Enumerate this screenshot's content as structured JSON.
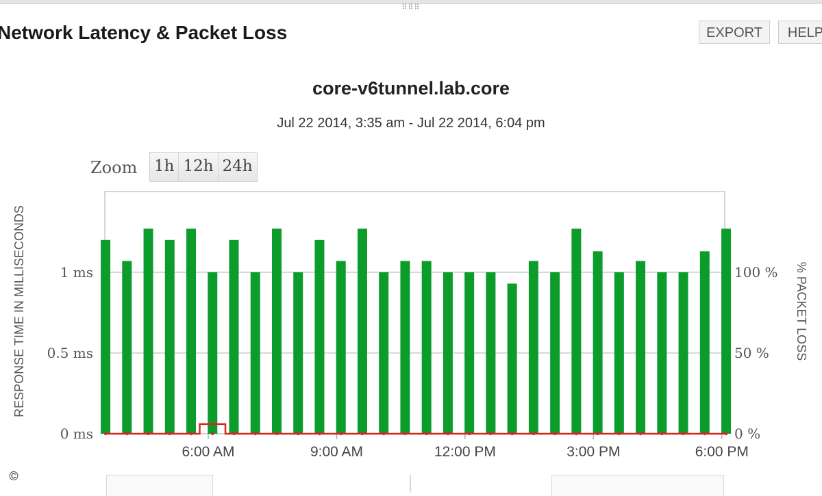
{
  "header": {
    "title": "Network Latency & Packet Loss",
    "export_label": "EXPORT",
    "help_label": "HELP"
  },
  "zoom": {
    "label": "Zoom",
    "options": [
      "1h",
      "12h",
      "24h"
    ]
  },
  "footer": {
    "copyright": "©"
  },
  "colors": {
    "bar": "#0c9c2c",
    "packet_loss": "#e02020",
    "grid": "#cccccc",
    "axis_text": "#555555"
  },
  "chart_data": {
    "type": "bar",
    "title": "core-v6tunnel.lab.core",
    "subtitle": "Jul 22 2014, 3:35 am - Jul 22 2014, 6:04 pm",
    "ylabel": "RESPONSE TIME IN MILLISECONDS",
    "y2label": "% PACKET LOSS",
    "y_ticks": [
      "0 ms",
      "0.5 ms",
      "1 ms"
    ],
    "y2_ticks": [
      "0 %",
      "50 %",
      "100 %"
    ],
    "x_ticks": [
      "6:00 AM",
      "9:00 AM",
      "12:00 PM",
      "3:00 PM",
      "6:00 PM"
    ],
    "x_tick_hours": [
      6,
      9,
      12,
      15,
      18
    ],
    "ylim": [
      0,
      1.5
    ],
    "y2lim": [
      0,
      150
    ],
    "x_range_hours": [
      3.583,
      18.067
    ],
    "grid": true,
    "series": [
      {
        "type": "bar",
        "axis": "left",
        "x_hours": [
          3.6,
          4.1,
          4.6,
          5.1,
          5.6,
          6.1,
          6.6,
          7.1,
          7.6,
          8.1,
          8.6,
          9.1,
          9.6,
          10.1,
          10.6,
          11.1,
          11.6,
          12.1,
          12.6,
          13.1,
          13.6,
          14.1,
          14.6,
          15.1,
          15.6,
          16.1,
          16.6,
          17.1,
          17.6,
          18.1
        ],
        "values": [
          1.2,
          1.07,
          1.27,
          1.2,
          1.27,
          1.0,
          1.2,
          1.0,
          1.27,
          1.0,
          1.2,
          1.07,
          1.27,
          1.0,
          1.07,
          1.07,
          1.0,
          1.0,
          1.0,
          0.93,
          1.07,
          1.0,
          1.27,
          1.13,
          1.0,
          1.07,
          1.0,
          1.0,
          1.13,
          1.27
        ]
      },
      {
        "type": "line",
        "axis": "right",
        "x_hours": [
          3.6,
          4.1,
          4.6,
          5.1,
          5.6,
          5.8,
          5.8,
          6.4,
          6.4,
          6.6,
          7.1,
          7.6,
          8.1,
          8.6,
          9.1,
          9.6,
          10.1,
          10.6,
          11.1,
          11.6,
          12.1,
          12.6,
          13.1,
          13.6,
          14.1,
          14.6,
          15.1,
          15.6,
          16.1,
          16.6,
          17.1,
          17.6,
          18.1
        ],
        "values": [
          0,
          0,
          0,
          0,
          0,
          0,
          6,
          6,
          0,
          0,
          0,
          0,
          0,
          0,
          0,
          0,
          0,
          0,
          0,
          0,
          0,
          0,
          0,
          0,
          0,
          0,
          0,
          0,
          0,
          0,
          0,
          0,
          0
        ]
      }
    ]
  }
}
